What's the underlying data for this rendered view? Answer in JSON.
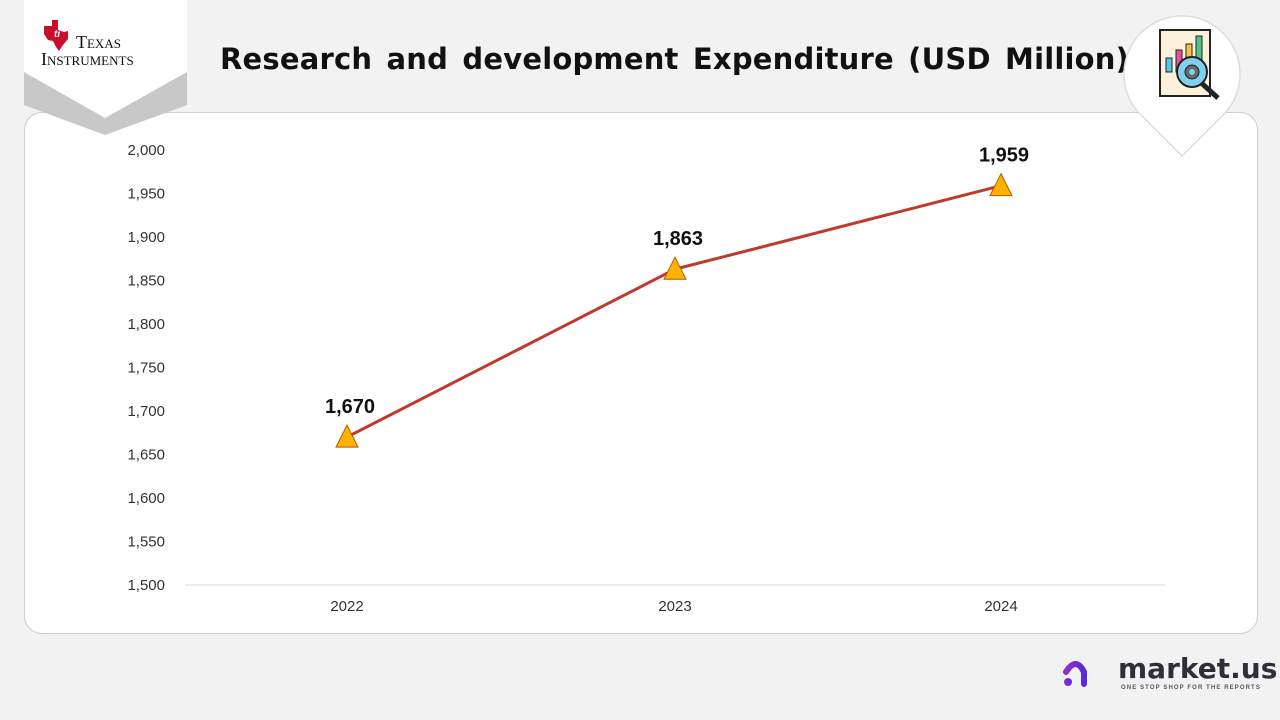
{
  "header": {
    "title": "Research and development Expenditure (USD Million)",
    "company_logo": {
      "line1": "Texas",
      "line2": "Instruments",
      "color": "#c8102e"
    },
    "icon": "report-analysis-icon"
  },
  "footer": {
    "brand": "market.us",
    "brand_dot_color": "#8b2fc9",
    "tagline": "ONE STOP SHOP FOR THE REPORTS"
  },
  "chart_data": {
    "type": "line",
    "title": "Research and development Expenditure (USD Million)",
    "categories": [
      "2022",
      "2023",
      "2024"
    ],
    "series": [
      {
        "values": [
          1670,
          1863,
          1959
        ],
        "labels": [
          "1,670",
          "1,863",
          "1,959"
        ],
        "color": "#c0392b",
        "marker": "triangle",
        "marker_color": "#ffb300"
      }
    ],
    "ylim": [
      1500,
      2000
    ],
    "yticks": [
      "1,500",
      "1,550",
      "1,600",
      "1,650",
      "1,700",
      "1,750",
      "1,800",
      "1,850",
      "1,900",
      "1,950",
      "2,000"
    ],
    "grid": false,
    "legend": "none"
  }
}
